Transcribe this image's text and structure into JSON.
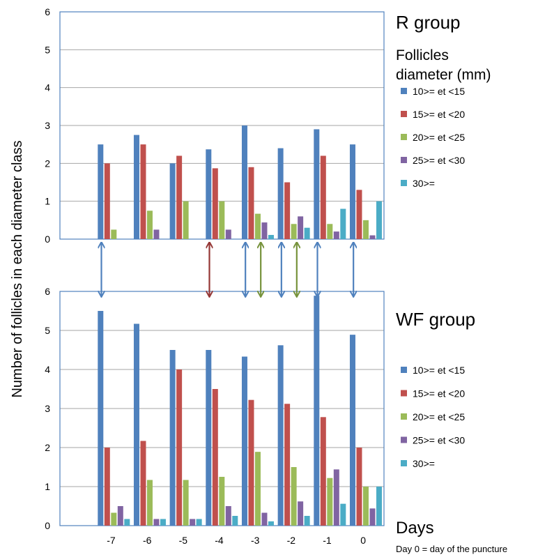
{
  "y_axis_label": "Number of follicles in each diameter class",
  "x_axis_title": "Days",
  "x_note": "Day 0 = day of the puncture",
  "legend_title": "Follicles diameter (mm)",
  "colors": {
    "10>= et <15": "#4F81BD",
    "15>= et <20": "#C0504D",
    "20>= et <25": "#9BBB59",
    "25>= et <30": "#8064A2",
    "30>=": "#4BACC6",
    "axis": "#4F81BD",
    "grid": "#A6A6A6",
    "arrow_blue": "#4F81BD",
    "arrow_red": "#953735",
    "arrow_green": "#77933C"
  },
  "arrows": [
    {
      "day": "-7",
      "color": "arrow_blue"
    },
    {
      "day": "-4",
      "color": "arrow_red"
    },
    {
      "day": "-3",
      "color": "arrow_blue"
    },
    {
      "day": "-3",
      "color": "arrow_green"
    },
    {
      "day": "-2",
      "color": "arrow_blue"
    },
    {
      "day": "-2",
      "color": "arrow_green"
    },
    {
      "day": "-1",
      "color": "arrow_blue"
    },
    {
      "day": "0",
      "color": "arrow_blue"
    }
  ],
  "chart_data": [
    {
      "type": "bar",
      "title": "R group",
      "categories": [
        "-7",
        "-6",
        "-5",
        "-4",
        "-3",
        "-2",
        "-1",
        "0"
      ],
      "ylim": [
        0,
        6
      ],
      "yticks": [
        0,
        1,
        2,
        3,
        4,
        5,
        6
      ],
      "grid": true,
      "legend": "right",
      "show_x_tick_labels": false,
      "series": [
        {
          "name": "10>= et <15",
          "values": [
            2.5,
            2.75,
            2.0,
            2.37,
            3.0,
            2.4,
            2.9,
            2.5
          ]
        },
        {
          "name": "15>= et <20",
          "values": [
            2.0,
            2.5,
            2.2,
            1.87,
            1.9,
            1.5,
            2.2,
            1.3
          ]
        },
        {
          "name": "20>= et <25",
          "values": [
            0.25,
            0.75,
            1.0,
            1.0,
            0.67,
            0.4,
            0.4,
            0.5
          ]
        },
        {
          "name": "25>= et <30",
          "values": [
            0,
            0.25,
            0,
            0.25,
            0.44,
            0.6,
            0.2,
            0.1
          ]
        },
        {
          "name": "30>=",
          "values": [
            0,
            0,
            0,
            0,
            0.11,
            0.3,
            0.8,
            1.0
          ]
        }
      ]
    },
    {
      "type": "bar",
      "title": "WF group",
      "categories": [
        "-7",
        "-6",
        "-5",
        "-4",
        "-3",
        "-2",
        "-1",
        "0"
      ],
      "ylim": [
        0,
        6
      ],
      "yticks": [
        0,
        1,
        2,
        3,
        4,
        5,
        6
      ],
      "grid": true,
      "legend": "right",
      "show_x_tick_labels": true,
      "series": [
        {
          "name": "10>= et <15",
          "values": [
            5.5,
            5.17,
            4.5,
            4.5,
            4.33,
            4.62,
            5.89,
            4.89
          ]
        },
        {
          "name": "15>= et <20",
          "values": [
            2.0,
            2.17,
            4.0,
            3.5,
            3.22,
            3.12,
            2.78,
            2.0
          ]
        },
        {
          "name": "20>= et <25",
          "values": [
            0.33,
            1.17,
            1.17,
            1.25,
            1.89,
            1.5,
            1.22,
            1.0
          ]
        },
        {
          "name": "25>= et <30",
          "values": [
            0.5,
            0.17,
            0.17,
            0.5,
            0.33,
            0.62,
            1.44,
            0.44
          ]
        },
        {
          "name": "30>=",
          "values": [
            0.17,
            0.17,
            0.17,
            0.25,
            0.11,
            0.25,
            0.56,
            1.0
          ]
        }
      ]
    }
  ]
}
